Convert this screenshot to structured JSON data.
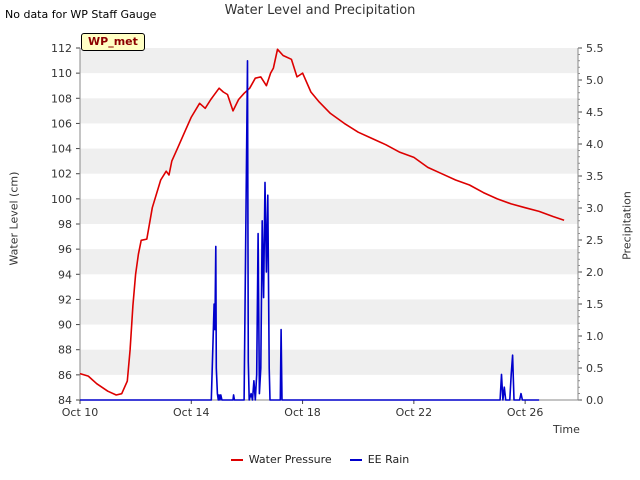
{
  "header": {
    "no_data_note": "No data for WP Staff Gauge",
    "title": "Water Level and Precipitation",
    "badge": "WP_met"
  },
  "colors": {
    "pressure": "#dd0000",
    "rain": "#0000cc",
    "band": "#efefef"
  },
  "chart_data": {
    "type": "line",
    "title": "Water Level and Precipitation",
    "xlabel": "Time",
    "ylabel_left": "Water Level (cm)",
    "ylabel_right": "Precipitation",
    "x_unit": "days since Oct 10",
    "x_ticks": [
      {
        "value": 0,
        "label": "Oct 10"
      },
      {
        "value": 4,
        "label": "Oct 14"
      },
      {
        "value": 8,
        "label": "Oct 18"
      },
      {
        "value": 12,
        "label": "Oct 22"
      },
      {
        "value": 16,
        "label": "Oct 26"
      }
    ],
    "xlim": [
      0,
      17.9
    ],
    "ylim_left": [
      84,
      112
    ],
    "y_ticks_left": [
      84,
      86,
      88,
      90,
      92,
      94,
      96,
      98,
      100,
      102,
      104,
      106,
      108,
      110,
      112
    ],
    "ylim_right": [
      0,
      5.5
    ],
    "y_ticks_right": [
      0.0,
      0.5,
      1.0,
      1.5,
      2.0,
      2.5,
      3.0,
      3.5,
      4.0,
      4.5,
      5.0,
      5.5
    ],
    "series": [
      {
        "name": "Water Pressure",
        "axis": "left",
        "x": [
          0.0,
          0.3,
          0.6,
          1.0,
          1.3,
          1.5,
          1.7,
          1.8,
          1.9,
          2.0,
          2.1,
          2.2,
          2.4,
          2.6,
          2.9,
          3.1,
          3.2,
          3.3,
          3.5,
          3.8,
          4.0,
          4.3,
          4.5,
          4.7,
          4.8,
          5.0,
          5.15,
          5.3,
          5.5,
          5.7,
          5.9,
          6.1,
          6.3,
          6.5,
          6.7,
          6.85,
          6.95,
          7.1,
          7.3,
          7.6,
          7.8,
          8.0,
          8.3,
          8.6,
          9.0,
          9.5,
          10.0,
          10.5,
          11.0,
          11.5,
          12.0,
          12.5,
          13.0,
          13.5,
          14.0,
          14.5,
          15.0,
          15.5,
          16.0,
          16.5,
          17.0,
          17.4
        ],
        "values": [
          86.1,
          85.9,
          85.3,
          84.7,
          84.4,
          84.5,
          85.5,
          88.0,
          91.5,
          94.0,
          95.6,
          96.7,
          96.8,
          99.3,
          101.5,
          102.2,
          101.9,
          103.0,
          104.0,
          105.5,
          106.5,
          107.6,
          107.2,
          107.9,
          108.2,
          108.8,
          108.5,
          108.3,
          107.0,
          107.9,
          108.4,
          108.8,
          109.6,
          109.7,
          109.0,
          110.0,
          110.4,
          111.9,
          111.4,
          111.1,
          109.7,
          110.0,
          108.5,
          107.7,
          106.8,
          106.0,
          105.3,
          104.8,
          104.3,
          103.7,
          103.3,
          102.5,
          102.0,
          101.5,
          101.1,
          100.5,
          100.0,
          99.6,
          99.3,
          99.0,
          98.6,
          98.3
        ]
      },
      {
        "name": "EE Rain",
        "axis": "right",
        "x": [
          0.0,
          4.72,
          4.78,
          4.82,
          4.85,
          4.88,
          4.9,
          4.94,
          4.97,
          5.0,
          5.03,
          5.06,
          5.1,
          5.5,
          5.52,
          5.55,
          5.9,
          6.02,
          6.05,
          6.08,
          6.15,
          6.2,
          6.25,
          6.3,
          6.35,
          6.4,
          6.45,
          6.5,
          6.55,
          6.6,
          6.65,
          6.7,
          6.75,
          6.8,
          6.83,
          6.86,
          6.9,
          6.93,
          6.96,
          7.0,
          7.1,
          7.2,
          7.23,
          7.26,
          7.3,
          15.1,
          15.15,
          15.2,
          15.25,
          15.3,
          15.45,
          15.5,
          15.55,
          15.6,
          15.65,
          15.8,
          15.85,
          15.9,
          16.5
        ],
        "values": [
          0.0,
          0.0,
          0.9,
          1.5,
          1.1,
          2.4,
          0.5,
          0.1,
          0.0,
          0.08,
          0.0,
          0.08,
          0.0,
          0.0,
          0.08,
          0.0,
          0.0,
          5.3,
          0.6,
          0.0,
          0.1,
          0.0,
          0.3,
          0.0,
          0.4,
          2.6,
          0.1,
          0.5,
          2.8,
          1.6,
          3.4,
          2.0,
          3.2,
          0.5,
          0.0,
          0.0,
          0.0,
          0.0,
          0.0,
          0.0,
          0.0,
          0.0,
          1.1,
          0.0,
          0.0,
          0.0,
          0.4,
          0.0,
          0.2,
          0.0,
          0.0,
          0.4,
          0.7,
          0.0,
          0.0,
          0.0,
          0.1,
          0.0,
          0.0
        ]
      }
    ],
    "legend": [
      {
        "label": "Water Pressure",
        "color": "#dd0000"
      },
      {
        "label": "EE Rain",
        "color": "#0000cc"
      }
    ],
    "legend_position": "bottom-center"
  }
}
